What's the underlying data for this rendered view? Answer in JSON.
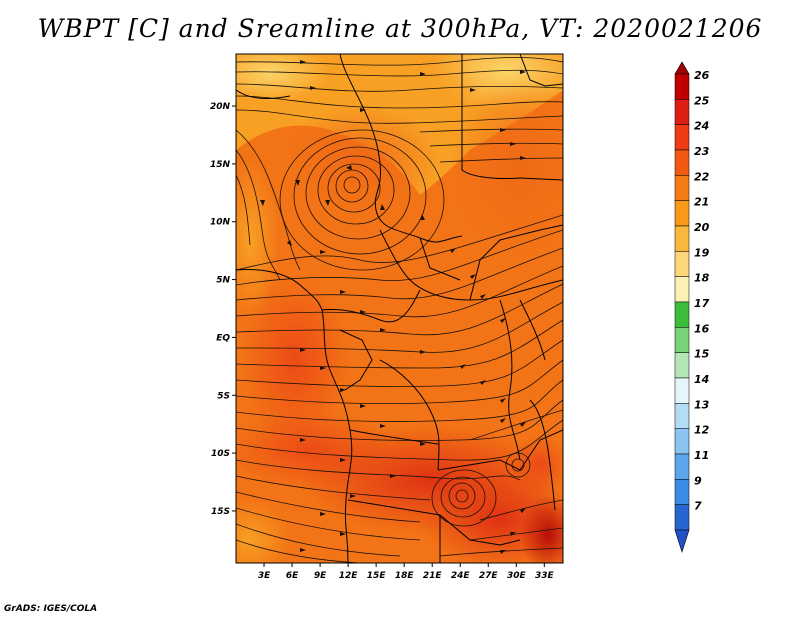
{
  "title": "WBPT [C] and Sreamline at 300hPa, VT: 2020021206",
  "credit": "GrADS: IGES/COLA",
  "map": {
    "lat_labels": [
      "20N",
      "15N",
      "10N",
      "5N",
      "EQ",
      "5S",
      "10S",
      "15S"
    ],
    "lat_values": [
      20,
      15,
      10,
      5,
      0,
      -5,
      -10,
      -15
    ],
    "lon_labels": [
      "3E",
      "6E",
      "9E",
      "12E",
      "15E",
      "18E",
      "21E",
      "24E",
      "27E",
      "30E",
      "33E"
    ],
    "lon_values": [
      3,
      6,
      9,
      12,
      15,
      18,
      21,
      24,
      27,
      30,
      33
    ],
    "lon_range": [
      0,
      35
    ],
    "lat_range": [
      -19.5,
      24.5
    ]
  },
  "colorbar": {
    "labels": [
      "26",
      "25",
      "24",
      "23",
      "22",
      "21",
      "20",
      "19",
      "18",
      "17",
      "16",
      "15",
      "14",
      "13",
      "12",
      "11",
      "9",
      "7"
    ],
    "colors": [
      "#c00000",
      "#de1e12",
      "#f03c14",
      "#f25a14",
      "#f57a14",
      "#f89a18",
      "#fab93c",
      "#fcd678",
      "#fdf0b4",
      "#3cbe3c",
      "#78d278",
      "#b4e6b4",
      "#e6f5fa",
      "#b4dcf5",
      "#8cc3f0",
      "#5aa5eb",
      "#3c8ce6",
      "#2864d2"
    ],
    "top_arrow_color": "#a00000",
    "bottom_arrow_color": "#2050c8"
  }
}
